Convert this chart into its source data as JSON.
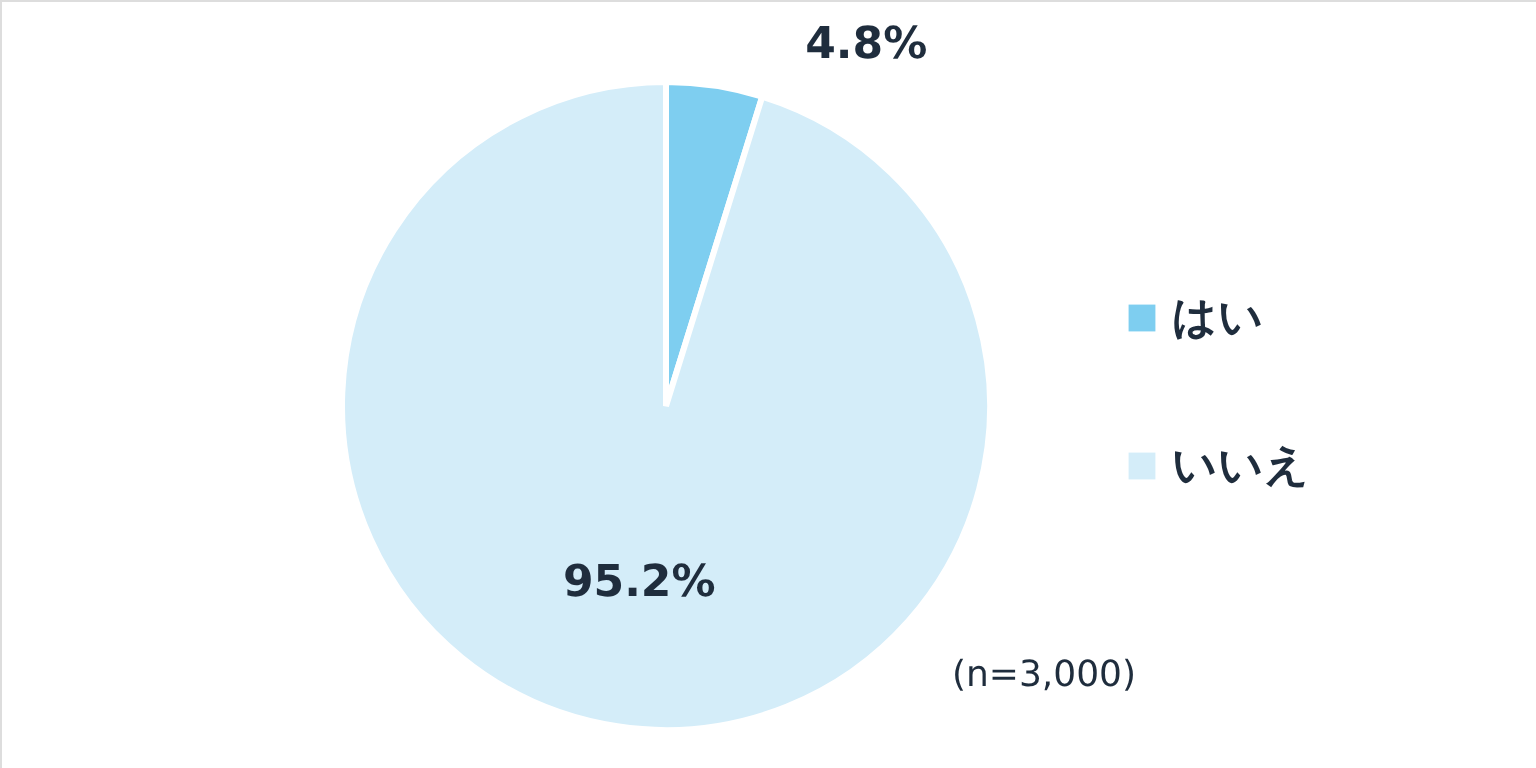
{
  "chart_data": {
    "type": "pie",
    "categories": [
      "はい",
      "いいえ"
    ],
    "values": [
      4.8,
      95.2
    ],
    "colors": [
      "#7ecef0",
      "#d4edf9"
    ],
    "value_labels": [
      "4.8%",
      "95.2%"
    ],
    "legend": "right",
    "annotations": [
      "(n=3,000)"
    ]
  }
}
